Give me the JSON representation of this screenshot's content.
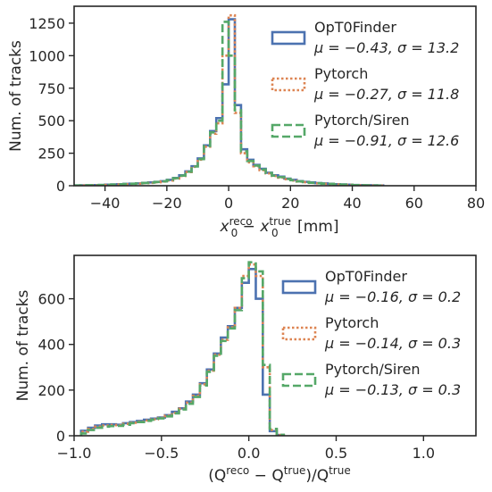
{
  "chart_data": [
    {
      "type": "histogram",
      "ylabel": "Num. of tracks",
      "xlabel": {
        "main": "x",
        "sup1": "reco",
        "sub1": "0",
        "minus": " − ",
        "sup2": "true",
        "sub2": "0",
        "unit": " [mm]"
      },
      "xlim": [
        -50,
        80
      ],
      "ylim": [
        0,
        1380
      ],
      "xticks": [
        -40,
        -20,
        0,
        20,
        40,
        60,
        80
      ],
      "xtick_labels": [
        "−40",
        "−20",
        "0",
        "20",
        "40",
        "60",
        "80"
      ],
      "yticks": [
        0,
        250,
        500,
        750,
        1000,
        1250
      ],
      "ytick_labels": [
        "0",
        "250",
        "500",
        "750",
        "1000",
        "1250"
      ],
      "bin_edges": [
        -50,
        -48,
        -46,
        -44,
        -42,
        -40,
        -38,
        -36,
        -34,
        -32,
        -30,
        -28,
        -26,
        -24,
        -22,
        -20,
        -18,
        -16,
        -14,
        -12,
        -10,
        -8,
        -6,
        -4,
        -2,
        0,
        2,
        4,
        6,
        8,
        10,
        12,
        14,
        16,
        18,
        20,
        22,
        24,
        26,
        28,
        30,
        32,
        34,
        36,
        38,
        40,
        42,
        44,
        46,
        48,
        50
      ],
      "series": [
        {
          "name": "OpT0Finder",
          "stats": "μ = −0.43, σ = 13.2",
          "color": "#4c72b0",
          "dash": "solid",
          "values": [
            2,
            3,
            4,
            5,
            6,
            8,
            10,
            12,
            14,
            16,
            18,
            22,
            25,
            30,
            35,
            45,
            60,
            80,
            110,
            150,
            210,
            310,
            420,
            520,
            780,
            1280,
            620,
            280,
            200,
            160,
            130,
            100,
            80,
            70,
            55,
            45,
            35,
            30,
            25,
            20,
            18,
            15,
            12,
            10,
            8,
            6,
            5,
            4,
            3,
            2
          ]
        },
        {
          "name": "Pytorch",
          "stats": "μ = −0.27, σ = 11.8",
          "color": "#dd8452",
          "dash": "dotted",
          "values": [
            1,
            2,
            3,
            4,
            5,
            6,
            8,
            10,
            12,
            14,
            16,
            19,
            22,
            27,
            32,
            40,
            55,
            75,
            105,
            145,
            200,
            300,
            400,
            480,
            1000,
            1310,
            560,
            250,
            180,
            150,
            120,
            95,
            75,
            62,
            50,
            40,
            32,
            27,
            22,
            18,
            15,
            13,
            10,
            8,
            7,
            5,
            4,
            3,
            2,
            1
          ]
        },
        {
          "name": "Pytorch/Siren",
          "stats": "μ = −0.91, σ = 12.6",
          "color": "#55a868",
          "dash": "dashed",
          "values": [
            2,
            3,
            4,
            5,
            6,
            7,
            9,
            11,
            13,
            15,
            18,
            21,
            24,
            29,
            34,
            43,
            58,
            78,
            108,
            148,
            205,
            305,
            410,
            500,
            1260,
            1000,
            580,
            265,
            190,
            155,
            125,
            98,
            78,
            66,
            52,
            42,
            34,
            28,
            23,
            19,
            16,
            14,
            11,
            9,
            7,
            5,
            4,
            3,
            2,
            1
          ]
        }
      ],
      "legend_position": "upper right"
    },
    {
      "type": "histogram",
      "ylabel": "Num. of tracks",
      "xlabel": {
        "open": "(Q",
        "sup1": "reco",
        "minus": " − Q",
        "sup2": "true",
        "mid": ")/Q",
        "sup3": "true"
      },
      "xlim": [
        -1.0,
        1.3
      ],
      "ylim": [
        0,
        790
      ],
      "xticks": [
        -1.0,
        -0.5,
        0.0,
        0.5,
        1.0
      ],
      "xtick_labels": [
        "−1.0",
        "−0.5",
        "0.0",
        "0.5",
        "1.0"
      ],
      "yticks": [
        0,
        200,
        400,
        600
      ],
      "ytick_labels": [
        "0",
        "200",
        "400",
        "600"
      ],
      "bin_edges": [
        -0.96,
        -0.92,
        -0.88,
        -0.84,
        -0.8,
        -0.76,
        -0.72,
        -0.68,
        -0.64,
        -0.6,
        -0.56,
        -0.52,
        -0.48,
        -0.44,
        -0.4,
        -0.36,
        -0.32,
        -0.28,
        -0.24,
        -0.2,
        -0.16,
        -0.12,
        -0.08,
        -0.04,
        0.0,
        0.04,
        0.08,
        0.12,
        0.16,
        0.2
      ],
      "series": [
        {
          "name": "OpT0Finder",
          "stats": "μ = −0.16, σ = 0.2",
          "color": "#4c72b0",
          "dash": "solid",
          "values": [
            22,
            35,
            45,
            50,
            50,
            48,
            55,
            60,
            65,
            70,
            75,
            80,
            90,
            105,
            120,
            150,
            180,
            230,
            290,
            360,
            430,
            480,
            560,
            670,
            730,
            600,
            180,
            20,
            3
          ]
        },
        {
          "name": "Pytorch",
          "stats": "μ = −0.14, σ = 0.3",
          "color": "#dd8452",
          "dash": "dotted",
          "values": [
            18,
            30,
            40,
            45,
            47,
            46,
            52,
            57,
            62,
            67,
            72,
            78,
            88,
            100,
            118,
            145,
            175,
            225,
            285,
            355,
            420,
            475,
            560,
            700,
            750,
            700,
            300,
            25,
            3
          ]
        },
        {
          "name": "Pytorch/Siren",
          "stats": "μ = −0.13, σ = 0.3",
          "color": "#55a868",
          "dash": "dashed",
          "values": [
            10,
            25,
            35,
            40,
            42,
            43,
            48,
            55,
            60,
            65,
            70,
            76,
            85,
            98,
            115,
            140,
            170,
            220,
            280,
            350,
            415,
            470,
            550,
            690,
            760,
            720,
            310,
            30,
            4
          ]
        }
      ],
      "legend_position": "upper right"
    }
  ]
}
